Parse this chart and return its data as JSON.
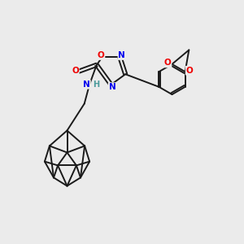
{
  "bg_color": "#ebebeb",
  "bond_color": "#1a1a1a",
  "atom_colors": {
    "N": "#0000ee",
    "O": "#ee0000",
    "H": "#4a9a9a",
    "C": "#1a1a1a"
  }
}
